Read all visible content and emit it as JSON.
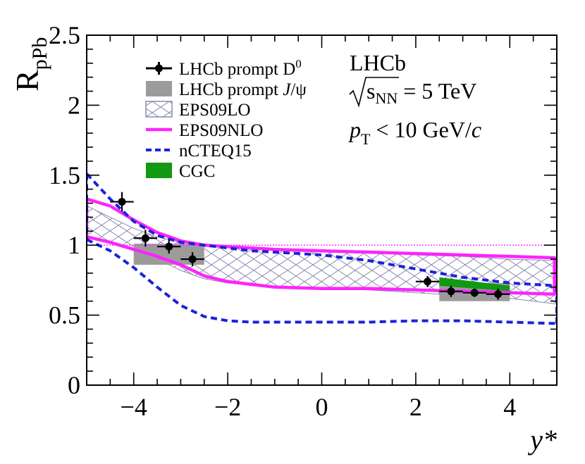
{
  "chart_data": {
    "type": "line",
    "ylabel_main": "R",
    "ylabel_sub": "pPb",
    "xlabel": "y*",
    "xlim": [
      -5,
      5
    ],
    "ylim": [
      0,
      2.5
    ],
    "xticks": [
      -4,
      -2,
      0,
      2,
      4
    ],
    "xtick_labels": [
      "−4",
      "−2",
      "0",
      "2",
      "4"
    ],
    "yticks": [
      0,
      0.5,
      1,
      1.5,
      2,
      2.5
    ],
    "ytick_labels": [
      "0",
      "0.5",
      "1",
      "1.5",
      "2",
      "2.5"
    ],
    "reference_line": 1.0,
    "annotations": {
      "experiment": "LHCb",
      "energy_symbol": "s",
      "energy_sub": "NN",
      "energy_value": " = 5 TeV",
      "pt_symbol": "p",
      "pt_sub": "T",
      "pt_cut": " < 10 GeV/",
      "pt_unit": "c"
    },
    "legend": {
      "position": "top-left",
      "entries": [
        {
          "key": "d0",
          "label": "LHCb prompt D",
          "sup": "0"
        },
        {
          "key": "jpsi",
          "label": "LHCb prompt ",
          "italic": "J",
          "tail": "/ψ"
        },
        {
          "key": "eps09lo",
          "label": "EPS09LO"
        },
        {
          "key": "eps09nlo",
          "label": "EPS09NLO"
        },
        {
          "key": "ncteq15",
          "label": "nCTEQ15"
        },
        {
          "key": "cgc",
          "label": "CGC"
        }
      ]
    },
    "colors": {
      "d0": "#000000",
      "jpsi": "#9b9b9b",
      "eps09lo": "#8a8ab0",
      "eps09nlo": "#ff22ff",
      "ncteq15": "#1a22dd",
      "cgc": "#119911",
      "reference": "#ff33ff"
    },
    "series": [
      {
        "name": "LHCb prompt D0",
        "points": [
          {
            "x": -4.25,
            "y": 1.31,
            "xerr": 0.25,
            "yerr": 0.07
          },
          {
            "x": -3.75,
            "y": 1.05,
            "xerr": 0.25,
            "yerr": 0.06
          },
          {
            "x": -3.25,
            "y": 0.99,
            "xerr": 0.25,
            "yerr": 0.05
          },
          {
            "x": -2.75,
            "y": 0.9,
            "xerr": 0.25,
            "yerr": 0.05
          },
          {
            "x": 2.25,
            "y": 0.74,
            "xerr": 0.25,
            "yerr": 0.04
          },
          {
            "x": 2.75,
            "y": 0.67,
            "xerr": 0.25,
            "yerr": 0.04
          },
          {
            "x": 3.25,
            "y": 0.66,
            "xerr": 0.25,
            "yerr": 0.03
          },
          {
            "x": 3.75,
            "y": 0.65,
            "xerr": 0.25,
            "yerr": 0.04
          }
        ]
      },
      {
        "name": "LHCb prompt J/psi",
        "boxes": [
          {
            "x0": -4.0,
            "x1": -2.5,
            "y0": 0.86,
            "y1": 1.01
          },
          {
            "x0": 2.5,
            "x1": 4.0,
            "y0": 0.6,
            "y1": 0.73
          }
        ]
      },
      {
        "name": "EPS09LO",
        "x": [
          -5,
          -4.5,
          -4,
          -3.5,
          -3,
          -2.5,
          -2,
          -1,
          0,
          1,
          2,
          3,
          4,
          5
        ],
        "upper": [
          1.28,
          1.2,
          1.12,
          1.06,
          1.02,
          1.0,
          0.99,
          0.97,
          0.96,
          0.95,
          0.93,
          0.92,
          0.9,
          0.89
        ],
        "lower": [
          1.06,
          1.03,
          0.96,
          0.9,
          0.82,
          0.76,
          0.73,
          0.7,
          0.69,
          0.68,
          0.66,
          0.64,
          0.62,
          0.58
        ]
      },
      {
        "name": "EPS09NLO",
        "x": [
          -5,
          -4.5,
          -4,
          -3.5,
          -3,
          -2.5,
          -2,
          -1,
          0,
          1,
          2,
          3,
          4,
          4.95
        ],
        "upper": [
          1.33,
          1.28,
          1.18,
          1.09,
          1.03,
          1.0,
          0.99,
          0.97,
          0.96,
          0.95,
          0.94,
          0.93,
          0.92,
          0.91
        ],
        "lower": [
          1.06,
          1.02,
          0.97,
          0.92,
          0.86,
          0.78,
          0.74,
          0.7,
          0.69,
          0.69,
          0.68,
          0.67,
          0.66,
          0.65
        ]
      },
      {
        "name": "nCTEQ15",
        "x": [
          -5,
          -4.5,
          -4,
          -3.5,
          -3,
          -2.5,
          -2,
          -1.5,
          -1,
          0,
          1,
          2,
          3,
          4,
          5
        ],
        "upper": [
          1.51,
          1.33,
          1.17,
          1.07,
          1.02,
          1.0,
          0.98,
          0.96,
          0.95,
          0.93,
          0.89,
          0.83,
          0.77,
          0.73,
          0.71
        ],
        "lower": [
          1.04,
          0.96,
          0.84,
          0.7,
          0.57,
          0.49,
          0.46,
          0.45,
          0.45,
          0.45,
          0.45,
          0.46,
          0.46,
          0.45,
          0.44
        ]
      },
      {
        "name": "CGC",
        "x": [
          2.5,
          4.0
        ],
        "upper": [
          0.77,
          0.71
        ],
        "lower": [
          0.71,
          0.67
        ]
      }
    ]
  }
}
